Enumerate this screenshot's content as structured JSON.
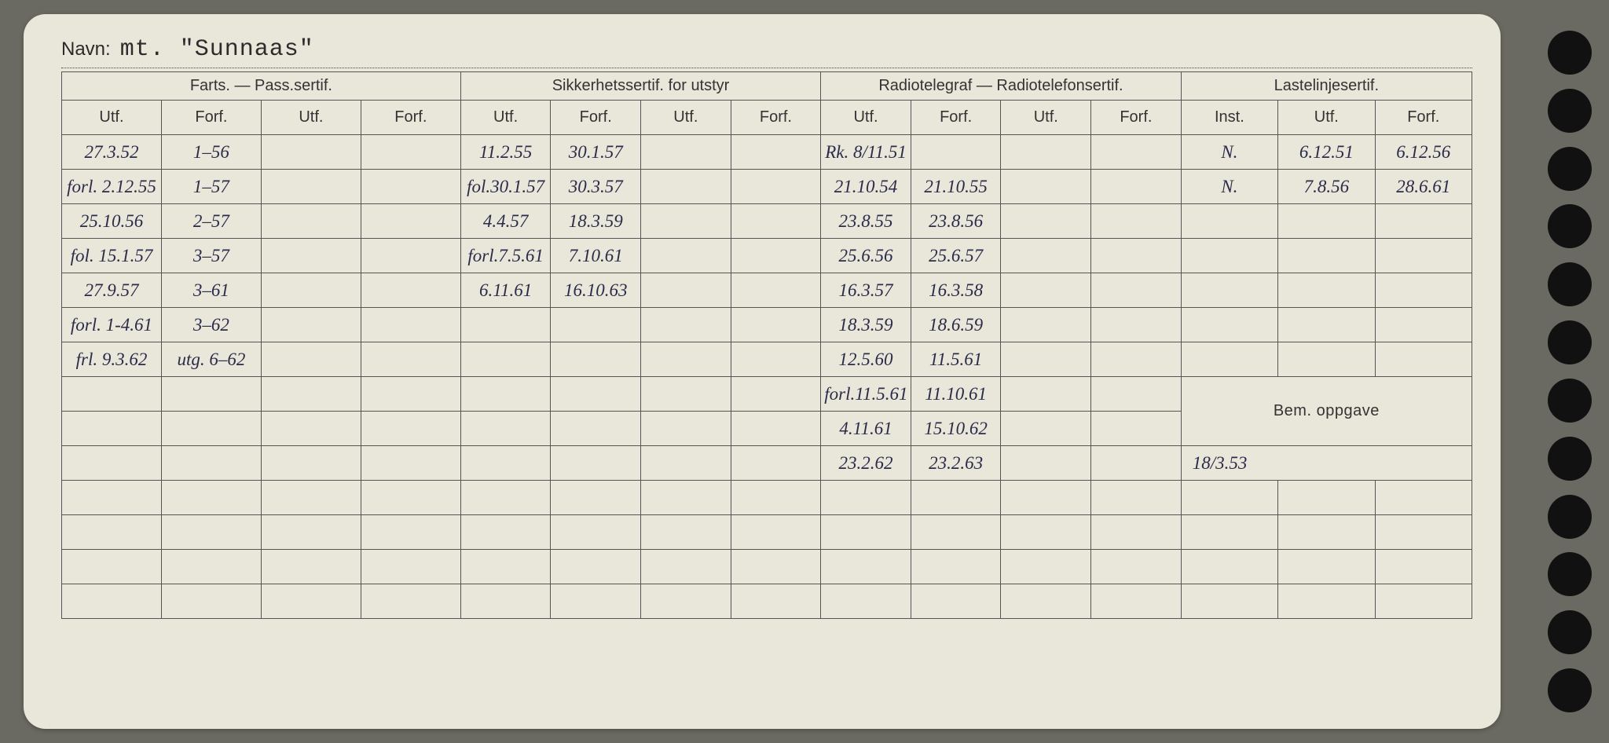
{
  "header": {
    "name_label": "Navn:",
    "name_value": "mt.  \"Sunnaas\""
  },
  "groups": {
    "farts": "Farts. — Pass.sertif.",
    "sikkerhet": "Sikkerhetssertif. for utstyr",
    "radio": "Radiotelegraf — Radiotelefonsertif.",
    "laste": "Lastelinjesertif."
  },
  "cols": {
    "utf": "Utf.",
    "forf": "Forf.",
    "inst": "Inst.",
    "bem": "Bem. oppgave"
  },
  "rows": [
    {
      "fp_utf": "27.3.52",
      "fp_forf": "1–56",
      "sik_utf": "11.2.55",
      "sik_forf": "30.1.57",
      "rad_utf": "Rk. 8/11.51",
      "rad_forf": "",
      "inst": "N.",
      "l_utf": "6.12.51",
      "l_forf": "6.12.56"
    },
    {
      "fp_utf": "forl. 2.12.55",
      "fp_forf": "1–57",
      "sik_utf": "fol.30.1.57",
      "sik_forf": "30.3.57",
      "rad_utf": "21.10.54",
      "rad_forf": "21.10.55",
      "inst": "N.",
      "l_utf": "7.8.56",
      "l_forf": "28.6.61"
    },
    {
      "fp_utf": "25.10.56",
      "fp_forf": "2–57",
      "sik_utf": "4.4.57",
      "sik_forf": "18.3.59",
      "rad_utf": "23.8.55",
      "rad_forf": "23.8.56",
      "inst": "",
      "l_utf": "",
      "l_forf": ""
    },
    {
      "fp_utf": "fol. 15.1.57",
      "fp_forf": "3–57",
      "sik_utf": "forl.7.5.61",
      "sik_forf": "7.10.61",
      "rad_utf": "25.6.56",
      "rad_forf": "25.6.57",
      "inst": "",
      "l_utf": "",
      "l_forf": ""
    },
    {
      "fp_utf": "27.9.57",
      "fp_forf": "3–61",
      "sik_utf": "6.11.61",
      "sik_forf": "16.10.63",
      "rad_utf": "16.3.57",
      "rad_forf": "16.3.58",
      "inst": "",
      "l_utf": "",
      "l_forf": ""
    },
    {
      "fp_utf": "forl. 1-4.61",
      "fp_forf": "3–62",
      "sik_utf": "",
      "sik_forf": "",
      "rad_utf": "18.3.59",
      "rad_forf": "18.6.59",
      "inst": "",
      "l_utf": "",
      "l_forf": ""
    },
    {
      "fp_utf": "frl. 9.3.62",
      "fp_forf": "utg. 6–62",
      "sik_utf": "",
      "sik_forf": "",
      "rad_utf": "12.5.60",
      "rad_forf": "11.5.61",
      "inst": "",
      "l_utf": "",
      "l_forf": ""
    },
    {
      "fp_utf": "",
      "fp_forf": "",
      "sik_utf": "",
      "sik_forf": "",
      "rad_utf": "forl.11.5.61",
      "rad_forf": "11.10.61",
      "inst": "",
      "l_utf": "",
      "l_forf": "",
      "bem_header": true
    },
    {
      "fp_utf": "",
      "fp_forf": "",
      "sik_utf": "",
      "sik_forf": "",
      "rad_utf": "4.11.61",
      "rad_forf": "15.10.62",
      "bem_row": true
    },
    {
      "fp_utf": "",
      "fp_forf": "",
      "sik_utf": "",
      "sik_forf": "",
      "rad_utf": "23.2.62",
      "rad_forf": "23.2.63",
      "bem_val": "18/3.53"
    },
    {
      "blank": true
    },
    {
      "blank": true
    },
    {
      "blank": true
    },
    {
      "blank": true
    }
  ],
  "bem_value": "18/3.53"
}
